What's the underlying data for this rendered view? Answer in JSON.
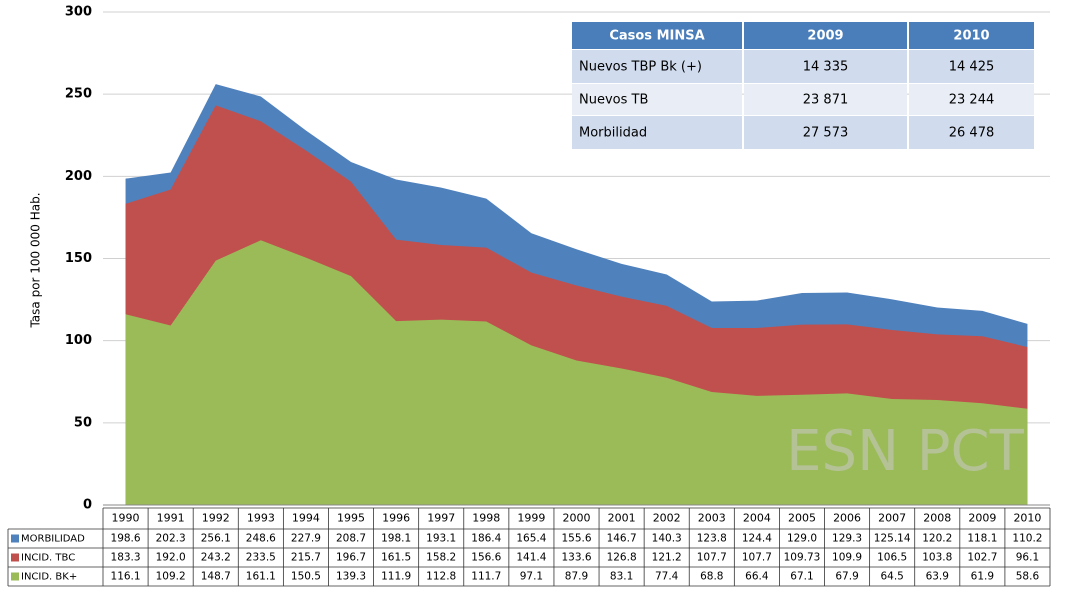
{
  "chart_data": {
    "type": "area",
    "y_label": "Tasa por 100 000 Hab.",
    "watermark": "ESN PCT",
    "categories": [
      "1990",
      "1991",
      "1992",
      "1993",
      "1994",
      "1995",
      "1996",
      "1997",
      "1998",
      "1999",
      "2000",
      "2001",
      "2002",
      "2003",
      "2004",
      "2005",
      "2006",
      "2007",
      "2008",
      "2009",
      "2010"
    ],
    "ylim": [
      0,
      300
    ],
    "yticks": [
      0,
      50,
      100,
      150,
      200,
      250,
      300
    ],
    "grid": true,
    "series": [
      {
        "name": "MORBILIDAD",
        "color": "#4f81bd",
        "values": [
          198.6,
          202.3,
          256.1,
          248.6,
          227.9,
          208.7,
          198.1,
          193.1,
          186.4,
          165.4,
          155.6,
          146.7,
          140.3,
          123.8,
          124.4,
          129.0,
          129.3,
          125.14,
          120.2,
          118.1,
          110.2
        ],
        "value_labels": [
          "198.6",
          "202.3",
          "256.1",
          "248.6",
          "227.9",
          "208.7",
          "198.1",
          "193.1",
          "186.4",
          "165.4",
          "155.6",
          "146.7",
          "140.3",
          "123.8",
          "124.4",
          "129.0",
          "129.3",
          "125.14",
          "120.2",
          "118.1",
          "110.2"
        ]
      },
      {
        "name": "INCID. TBC",
        "color": "#c0504d",
        "values": [
          183.3,
          192.0,
          243.2,
          233.5,
          215.7,
          196.7,
          161.5,
          158.2,
          156.6,
          141.4,
          133.6,
          126.8,
          121.2,
          107.7,
          107.7,
          109.73,
          109.9,
          106.5,
          103.8,
          102.7,
          96.1
        ],
        "value_labels": [
          "183.3",
          "192.0",
          "243.2",
          "233.5",
          "215.7",
          "196.7",
          "161.5",
          "158.2",
          "156.6",
          "141.4",
          "133.6",
          "126.8",
          "121.2",
          "107.7",
          "107.7",
          "109.73",
          "109.9",
          "106.5",
          "103.8",
          "102.7",
          "96.1"
        ]
      },
      {
        "name": "INCID. BK+",
        "color": "#9bbb59",
        "values": [
          116.1,
          109.2,
          148.7,
          161.1,
          150.5,
          139.3,
          111.9,
          112.8,
          111.7,
          97.1,
          87.9,
          83.1,
          77.4,
          68.8,
          66.4,
          67.1,
          67.9,
          64.5,
          63.9,
          61.9,
          58.6
        ],
        "value_labels": [
          "116.1",
          "109.2",
          "148.7",
          "161.1",
          "150.5",
          "139.3",
          "111.9",
          "112.8",
          "111.7",
          "97.1",
          "87.9",
          "83.1",
          "77.4",
          "68.8",
          "66.4",
          "67.1",
          "67.9",
          "64.5",
          "63.9",
          "61.9",
          "58.6"
        ]
      }
    ],
    "inset_table": {
      "header": [
        "Casos MINSA",
        "2009",
        "2010"
      ],
      "rows": [
        [
          "Nuevos TBP Bk (+)",
          "14 335",
          "14 425"
        ],
        [
          "Nuevos TB",
          "23 871",
          "23 244"
        ],
        [
          "Morbilidad",
          "27 573",
          "26 478"
        ]
      ]
    }
  }
}
